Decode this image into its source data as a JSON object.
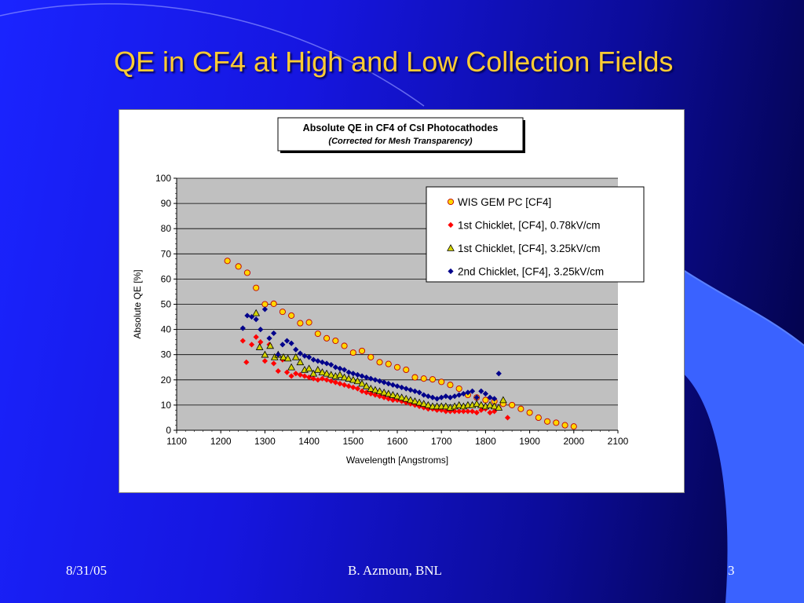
{
  "slide": {
    "title": "QE in CF4 at High and Low Collection Fields",
    "footer_date": "8/31/05",
    "footer_author": "B. Azmoun, BNL",
    "footer_page": "3",
    "title_color": "#ffcc33"
  },
  "chart_data": {
    "type": "scatter",
    "title": "Absolute QE in CF4 of CsI Photocathodes",
    "subtitle": "(Corrected for Mesh Transparency)",
    "xlabel": "Wavelength [Angstroms]",
    "ylabel": "Absolute QE [%]",
    "xlim": [
      1100,
      2100
    ],
    "ylim": [
      0,
      100
    ],
    "xticks": [
      1100,
      1200,
      1300,
      1400,
      1500,
      1600,
      1700,
      1800,
      1900,
      2000,
      2100
    ],
    "yticks": [
      0,
      10,
      20,
      30,
      40,
      50,
      60,
      70,
      80,
      90,
      100
    ],
    "grid": "horizontal",
    "legend_position": "top-right",
    "series": [
      {
        "name": "WIS GEM PC [CF4]",
        "marker": "circle",
        "color": "#ffd700",
        "points": [
          [
            1215,
            67.2
          ],
          [
            1240,
            65.0
          ],
          [
            1260,
            62.5
          ],
          [
            1280,
            56.5
          ],
          [
            1300,
            50.0
          ],
          [
            1320,
            50.2
          ],
          [
            1340,
            47.0
          ],
          [
            1360,
            45.5
          ],
          [
            1380,
            42.5
          ],
          [
            1400,
            42.8
          ],
          [
            1420,
            38.3
          ],
          [
            1440,
            36.5
          ],
          [
            1460,
            35.5
          ],
          [
            1480,
            33.5
          ],
          [
            1500,
            30.8
          ],
          [
            1520,
            31.5
          ],
          [
            1540,
            29.0
          ],
          [
            1560,
            27.0
          ],
          [
            1580,
            26.3
          ],
          [
            1600,
            25.0
          ],
          [
            1620,
            24.0
          ],
          [
            1640,
            21.0
          ],
          [
            1660,
            20.5
          ],
          [
            1680,
            20.2
          ],
          [
            1700,
            19.2
          ],
          [
            1720,
            18.0
          ],
          [
            1740,
            16.5
          ],
          [
            1760,
            14.0
          ],
          [
            1780,
            13.0
          ],
          [
            1800,
            12.0
          ],
          [
            1820,
            11.5
          ],
          [
            1840,
            10.5
          ],
          [
            1860,
            10.0
          ],
          [
            1880,
            8.5
          ],
          [
            1900,
            7.0
          ],
          [
            1920,
            5.0
          ],
          [
            1940,
            3.5
          ],
          [
            1960,
            3.0
          ],
          [
            1980,
            2.0
          ],
          [
            2000,
            1.5
          ]
        ]
      },
      {
        "name": "1st Chicklet, [CF4],  0.78kV/cm",
        "marker": "diamond",
        "color": "#ff0000",
        "points": [
          [
            1250,
            35.5
          ],
          [
            1258,
            27.0
          ],
          [
            1270,
            34.0
          ],
          [
            1280,
            37.0
          ],
          [
            1290,
            35.0
          ],
          [
            1300,
            27.5
          ],
          [
            1310,
            34.0
          ],
          [
            1320,
            26.5
          ],
          [
            1330,
            23.5
          ],
          [
            1340,
            28.0
          ],
          [
            1350,
            23.0
          ],
          [
            1360,
            21.5
          ],
          [
            1370,
            22.5
          ],
          [
            1380,
            22.0
          ],
          [
            1390,
            21.5
          ],
          [
            1400,
            21.0
          ],
          [
            1410,
            20.5
          ],
          [
            1420,
            20.0
          ],
          [
            1430,
            20.5
          ],
          [
            1440,
            20.0
          ],
          [
            1450,
            19.5
          ],
          [
            1460,
            19.0
          ],
          [
            1470,
            18.5
          ],
          [
            1480,
            18.0
          ],
          [
            1490,
            17.5
          ],
          [
            1500,
            17.0
          ],
          [
            1510,
            16.5
          ],
          [
            1520,
            15.5
          ],
          [
            1530,
            15.0
          ],
          [
            1540,
            14.5
          ],
          [
            1550,
            14.0
          ],
          [
            1560,
            13.5
          ],
          [
            1570,
            13.0
          ],
          [
            1580,
            12.5
          ],
          [
            1590,
            12.0
          ],
          [
            1600,
            12.0
          ],
          [
            1610,
            11.5
          ],
          [
            1620,
            11.0
          ],
          [
            1630,
            10.5
          ],
          [
            1640,
            10.0
          ],
          [
            1650,
            9.5
          ],
          [
            1660,
            9.0
          ],
          [
            1670,
            8.5
          ],
          [
            1680,
            8.5
          ],
          [
            1690,
            8.0
          ],
          [
            1700,
            8.0
          ],
          [
            1710,
            7.5
          ],
          [
            1720,
            7.5
          ],
          [
            1730,
            7.5
          ],
          [
            1740,
            7.5
          ],
          [
            1750,
            7.5
          ],
          [
            1760,
            7.5
          ],
          [
            1770,
            7.5
          ],
          [
            1780,
            7.0
          ],
          [
            1790,
            8.0
          ],
          [
            1800,
            8.5
          ],
          [
            1810,
            7.0
          ],
          [
            1820,
            7.5
          ],
          [
            1830,
            9.0
          ],
          [
            1850,
            5.0
          ]
        ]
      },
      {
        "name": "1st Chicklet, [CF4], 3.25kV/cm",
        "marker": "triangle",
        "color": "#d4d400",
        "points": [
          [
            1280,
            46.5
          ],
          [
            1288,
            33.0
          ],
          [
            1300,
            30.0
          ],
          [
            1312,
            33.5
          ],
          [
            1322,
            29.0
          ],
          [
            1330,
            30.0
          ],
          [
            1342,
            29.0
          ],
          [
            1352,
            28.5
          ],
          [
            1360,
            25.0
          ],
          [
            1370,
            29.0
          ],
          [
            1380,
            27.0
          ],
          [
            1390,
            24.0
          ],
          [
            1400,
            24.5
          ],
          [
            1410,
            22.5
          ],
          [
            1420,
            24.0
          ],
          [
            1430,
            23.0
          ],
          [
            1440,
            22.5
          ],
          [
            1450,
            22.0
          ],
          [
            1460,
            21.5
          ],
          [
            1470,
            22.0
          ],
          [
            1480,
            21.0
          ],
          [
            1490,
            20.5
          ],
          [
            1500,
            20.0
          ],
          [
            1510,
            19.5
          ],
          [
            1520,
            18.5
          ],
          [
            1530,
            17.5
          ],
          [
            1540,
            16.5
          ],
          [
            1550,
            16.0
          ],
          [
            1560,
            15.5
          ],
          [
            1570,
            15.0
          ],
          [
            1580,
            14.5
          ],
          [
            1590,
            14.0
          ],
          [
            1600,
            13.5
          ],
          [
            1610,
            13.0
          ],
          [
            1620,
            12.5
          ],
          [
            1630,
            12.0
          ],
          [
            1640,
            11.5
          ],
          [
            1650,
            11.0
          ],
          [
            1660,
            10.5
          ],
          [
            1670,
            10.0
          ],
          [
            1680,
            9.5
          ],
          [
            1690,
            9.5
          ],
          [
            1700,
            9.5
          ],
          [
            1710,
            9.5
          ],
          [
            1720,
            9.0
          ],
          [
            1730,
            9.5
          ],
          [
            1740,
            10.0
          ],
          [
            1750,
            9.5
          ],
          [
            1760,
            10.0
          ],
          [
            1770,
            10.0
          ],
          [
            1780,
            10.5
          ],
          [
            1790,
            10.0
          ],
          [
            1800,
            9.5
          ],
          [
            1810,
            10.0
          ],
          [
            1820,
            9.5
          ],
          [
            1830,
            9.0
          ],
          [
            1840,
            12.0
          ]
        ]
      },
      {
        "name": "2nd Chicklet, [CF4], 3.25kV/cm",
        "marker": "diamond",
        "color": "#00008b",
        "points": [
          [
            1250,
            40.5
          ],
          [
            1260,
            45.5
          ],
          [
            1270,
            45.0
          ],
          [
            1280,
            44.0
          ],
          [
            1290,
            40.0
          ],
          [
            1300,
            48.0
          ],
          [
            1310,
            36.5
          ],
          [
            1320,
            38.5
          ],
          [
            1330,
            30.0
          ],
          [
            1340,
            34.0
          ],
          [
            1350,
            35.5
          ],
          [
            1360,
            34.5
          ],
          [
            1370,
            32.0
          ],
          [
            1380,
            30.5
          ],
          [
            1390,
            29.5
          ],
          [
            1400,
            29.0
          ],
          [
            1410,
            28.0
          ],
          [
            1420,
            27.5
          ],
          [
            1430,
            27.0
          ],
          [
            1440,
            26.5
          ],
          [
            1450,
            26.0
          ],
          [
            1460,
            25.0
          ],
          [
            1470,
            24.5
          ],
          [
            1480,
            24.0
          ],
          [
            1490,
            23.0
          ],
          [
            1500,
            22.5
          ],
          [
            1510,
            22.0
          ],
          [
            1520,
            21.5
          ],
          [
            1530,
            21.0
          ],
          [
            1540,
            20.5
          ],
          [
            1550,
            20.0
          ],
          [
            1560,
            19.5
          ],
          [
            1570,
            19.0
          ],
          [
            1580,
            18.5
          ],
          [
            1590,
            18.0
          ],
          [
            1600,
            17.5
          ],
          [
            1610,
            17.0
          ],
          [
            1620,
            16.5
          ],
          [
            1630,
            16.0
          ],
          [
            1640,
            15.5
          ],
          [
            1650,
            15.0
          ],
          [
            1660,
            14.0
          ],
          [
            1670,
            13.5
          ],
          [
            1680,
            13.0
          ],
          [
            1690,
            12.5
          ],
          [
            1700,
            13.0
          ],
          [
            1710,
            13.5
          ],
          [
            1720,
            13.0
          ],
          [
            1730,
            13.5
          ],
          [
            1740,
            14.0
          ],
          [
            1750,
            14.5
          ],
          [
            1760,
            15.0
          ],
          [
            1770,
            15.5
          ],
          [
            1780,
            13.0
          ],
          [
            1790,
            15.5
          ],
          [
            1800,
            14.5
          ],
          [
            1810,
            13.0
          ],
          [
            1820,
            12.5
          ],
          [
            1830,
            22.5
          ]
        ]
      }
    ]
  }
}
